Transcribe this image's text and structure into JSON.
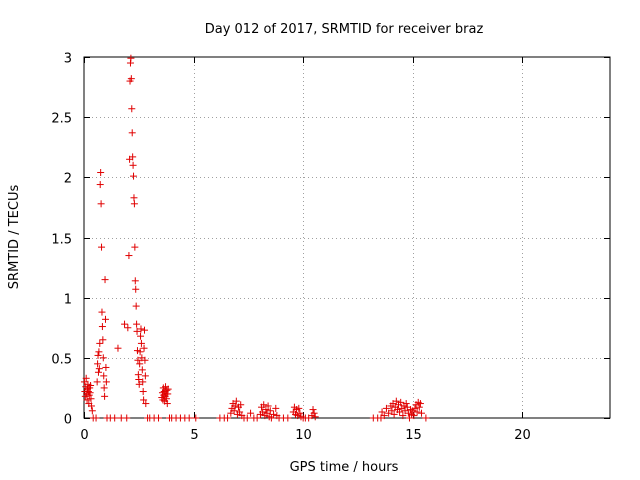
{
  "chart_data": {
    "type": "scatter",
    "title": "Day 012 of 2017, SRMTID for receiver braz",
    "xlabel": "GPS time / hours",
    "ylabel": "SRMTID / TECUs",
    "xlim": [
      0,
      24
    ],
    "ylim": [
      0,
      3
    ],
    "xticks": [
      0,
      5,
      10,
      15,
      20
    ],
    "yticks": [
      0,
      0.5,
      1,
      1.5,
      2,
      2.5,
      3
    ],
    "ytick_labels": [
      "0",
      "0.5",
      "1",
      "1.5",
      "2",
      "2.5",
      "3"
    ],
    "grid": true,
    "marker": "+",
    "color": "#e00000",
    "series": [
      {
        "name": "SRMTID",
        "points": [
          [
            0.02,
            0.3
          ],
          [
            0.04,
            0.22
          ],
          [
            0.06,
            0.18
          ],
          [
            0.08,
            0.26
          ],
          [
            0.1,
            0.33
          ],
          [
            0.12,
            0.2
          ],
          [
            0.14,
            0.15
          ],
          [
            0.16,
            0.24
          ],
          [
            0.18,
            0.28
          ],
          [
            0.2,
            0.22
          ],
          [
            0.22,
            0.12
          ],
          [
            0.24,
            0.19
          ],
          [
            0.26,
            0.25
          ],
          [
            0.28,
            0.21
          ],
          [
            0.3,
            0.27
          ],
          [
            0.32,
            0.16
          ],
          [
            0.34,
            0.1
          ],
          [
            0.38,
            0.06
          ],
          [
            0.42,
            0.0
          ],
          [
            0.55,
            0.0
          ],
          [
            0.6,
            0.3
          ],
          [
            0.62,
            0.45
          ],
          [
            0.64,
            0.52
          ],
          [
            0.66,
            0.38
          ],
          [
            0.68,
            0.55
          ],
          [
            0.7,
            0.41
          ],
          [
            0.72,
            0.62
          ],
          [
            0.74,
            1.94
          ],
          [
            0.76,
            2.04
          ],
          [
            0.78,
            1.78
          ],
          [
            0.8,
            1.42
          ],
          [
            0.82,
            0.88
          ],
          [
            0.84,
            0.76
          ],
          [
            0.86,
            0.65
          ],
          [
            0.88,
            0.5
          ],
          [
            0.9,
            0.35
          ],
          [
            0.92,
            0.25
          ],
          [
            0.94,
            0.18
          ],
          [
            0.96,
            1.15
          ],
          [
            0.98,
            0.82
          ],
          [
            1.0,
            0.42
          ],
          [
            1.02,
            0.3
          ],
          [
            1.05,
            0.0
          ],
          [
            1.2,
            0.0
          ],
          [
            1.4,
            0.0
          ],
          [
            1.55,
            0.58
          ],
          [
            1.7,
            0.0
          ],
          [
            1.85,
            0.78
          ],
          [
            1.95,
            0.0
          ],
          [
            2.0,
            0.75
          ],
          [
            2.05,
            1.35
          ],
          [
            2.08,
            2.15
          ],
          [
            2.1,
            2.8
          ],
          [
            2.12,
            2.95
          ],
          [
            2.14,
            2.99
          ],
          [
            2.16,
            2.82
          ],
          [
            2.18,
            2.57
          ],
          [
            2.2,
            2.37
          ],
          [
            2.22,
            2.17
          ],
          [
            2.24,
            2.1
          ],
          [
            2.26,
            2.01
          ],
          [
            2.28,
            1.83
          ],
          [
            2.3,
            1.78
          ],
          [
            2.32,
            1.42
          ],
          [
            2.34,
            1.14
          ],
          [
            2.36,
            1.07
          ],
          [
            2.38,
            0.93
          ],
          [
            2.4,
            0.78
          ],
          [
            2.42,
            0.72
          ],
          [
            2.44,
            0.56
          ],
          [
            2.46,
            0.48
          ],
          [
            2.48,
            0.36
          ],
          [
            2.5,
            0.32
          ],
          [
            2.52,
            0.28
          ],
          [
            2.54,
            0.45
          ],
          [
            2.56,
            0.55
          ],
          [
            2.58,
            0.68
          ],
          [
            2.6,
            0.74
          ],
          [
            2.62,
            0.62
          ],
          [
            2.64,
            0.5
          ],
          [
            2.66,
            0.4
          ],
          [
            2.68,
            0.3
          ],
          [
            2.7,
            0.22
          ],
          [
            2.72,
            0.15
          ],
          [
            2.74,
            0.58
          ],
          [
            2.76,
            0.73
          ],
          [
            2.78,
            0.48
          ],
          [
            2.8,
            0.35
          ],
          [
            2.82,
            0.12
          ],
          [
            2.9,
            0.0
          ],
          [
            3.0,
            0.0
          ],
          [
            3.2,
            0.0
          ],
          [
            3.4,
            0.0
          ],
          [
            3.55,
            0.17
          ],
          [
            3.58,
            0.21
          ],
          [
            3.6,
            0.15
          ],
          [
            3.62,
            0.25
          ],
          [
            3.64,
            0.19
          ],
          [
            3.66,
            0.22
          ],
          [
            3.68,
            0.14
          ],
          [
            3.7,
            0.18
          ],
          [
            3.72,
            0.26
          ],
          [
            3.74,
            0.2
          ],
          [
            3.76,
            0.16
          ],
          [
            3.78,
            0.23
          ],
          [
            3.8,
            0.12
          ],
          [
            3.82,
            0.2
          ],
          [
            3.84,
            0.24
          ],
          [
            3.9,
            0.0
          ],
          [
            4.0,
            0.0
          ],
          [
            4.2,
            0.0
          ],
          [
            4.4,
            0.0
          ],
          [
            4.6,
            0.0
          ],
          [
            4.8,
            0.0
          ],
          [
            5.1,
            0.0
          ],
          [
            6.2,
            0.0
          ],
          [
            6.4,
            0.0
          ],
          [
            6.55,
            0.0
          ],
          [
            6.7,
            0.04
          ],
          [
            6.75,
            0.08
          ],
          [
            6.8,
            0.12
          ],
          [
            6.85,
            0.06
          ],
          [
            6.9,
            0.1
          ],
          [
            6.95,
            0.14
          ],
          [
            7.0,
            0.03
          ],
          [
            7.05,
            0.09
          ],
          [
            7.1,
            0.05
          ],
          [
            7.15,
            0.11
          ],
          [
            7.2,
            0.02
          ],
          [
            7.3,
            0.0
          ],
          [
            7.45,
            0.0
          ],
          [
            7.6,
            0.04
          ],
          [
            7.75,
            0.0
          ],
          [
            7.9,
            0.0
          ],
          [
            8.05,
            0.03
          ],
          [
            8.1,
            0.09
          ],
          [
            8.15,
            0.05
          ],
          [
            8.2,
            0.11
          ],
          [
            8.25,
            0.02
          ],
          [
            8.3,
            0.07
          ],
          [
            8.35,
            0.04
          ],
          [
            8.4,
            0.1
          ],
          [
            8.45,
            0.01
          ],
          [
            8.5,
            0.06
          ],
          [
            8.55,
            0.0
          ],
          [
            8.65,
            0.03
          ],
          [
            8.75,
            0.08
          ],
          [
            8.8,
            0.02
          ],
          [
            8.9,
            0.0
          ],
          [
            9.1,
            0.0
          ],
          [
            9.3,
            0.0
          ],
          [
            9.55,
            0.05
          ],
          [
            9.6,
            0.09
          ],
          [
            9.65,
            0.03
          ],
          [
            9.7,
            0.07
          ],
          [
            9.75,
            0.02
          ],
          [
            9.8,
            0.08
          ],
          [
            9.85,
            0.04
          ],
          [
            9.9,
            0.01
          ],
          [
            10.0,
            0.0
          ],
          [
            10.1,
            0.0
          ],
          [
            10.25,
            0.0
          ],
          [
            10.4,
            0.02
          ],
          [
            10.45,
            0.07
          ],
          [
            10.5,
            0.04
          ],
          [
            10.55,
            0.01
          ],
          [
            13.2,
            0.0
          ],
          [
            13.4,
            0.0
          ],
          [
            13.55,
            0.0
          ],
          [
            13.6,
            0.05
          ],
          [
            13.7,
            0.02
          ],
          [
            13.8,
            0.08
          ],
          [
            13.9,
            0.04
          ],
          [
            14.0,
            0.1
          ],
          [
            14.05,
            0.06
          ],
          [
            14.1,
            0.12
          ],
          [
            14.15,
            0.03
          ],
          [
            14.2,
            0.09
          ],
          [
            14.25,
            0.14
          ],
          [
            14.3,
            0.07
          ],
          [
            14.35,
            0.11
          ],
          [
            14.4,
            0.05
          ],
          [
            14.45,
            0.13
          ],
          [
            14.5,
            0.08
          ],
          [
            14.55,
            0.02
          ],
          [
            14.6,
            0.1
          ],
          [
            14.65,
            0.06
          ],
          [
            14.7,
            0.12
          ],
          [
            14.75,
            0.09
          ],
          [
            14.8,
            0.04
          ],
          [
            14.85,
            0.0
          ],
          [
            14.9,
            0.07
          ],
          [
            14.95,
            0.03
          ],
          [
            15.0,
            0.06
          ],
          [
            15.05,
            0.02
          ],
          [
            15.1,
            0.08
          ],
          [
            15.15,
            0.11
          ],
          [
            15.2,
            0.05
          ],
          [
            15.25,
            0.13
          ],
          [
            15.3,
            0.09
          ],
          [
            15.35,
            0.12
          ],
          [
            15.4,
            0.04
          ],
          [
            15.6,
            0.0
          ]
        ]
      }
    ]
  }
}
